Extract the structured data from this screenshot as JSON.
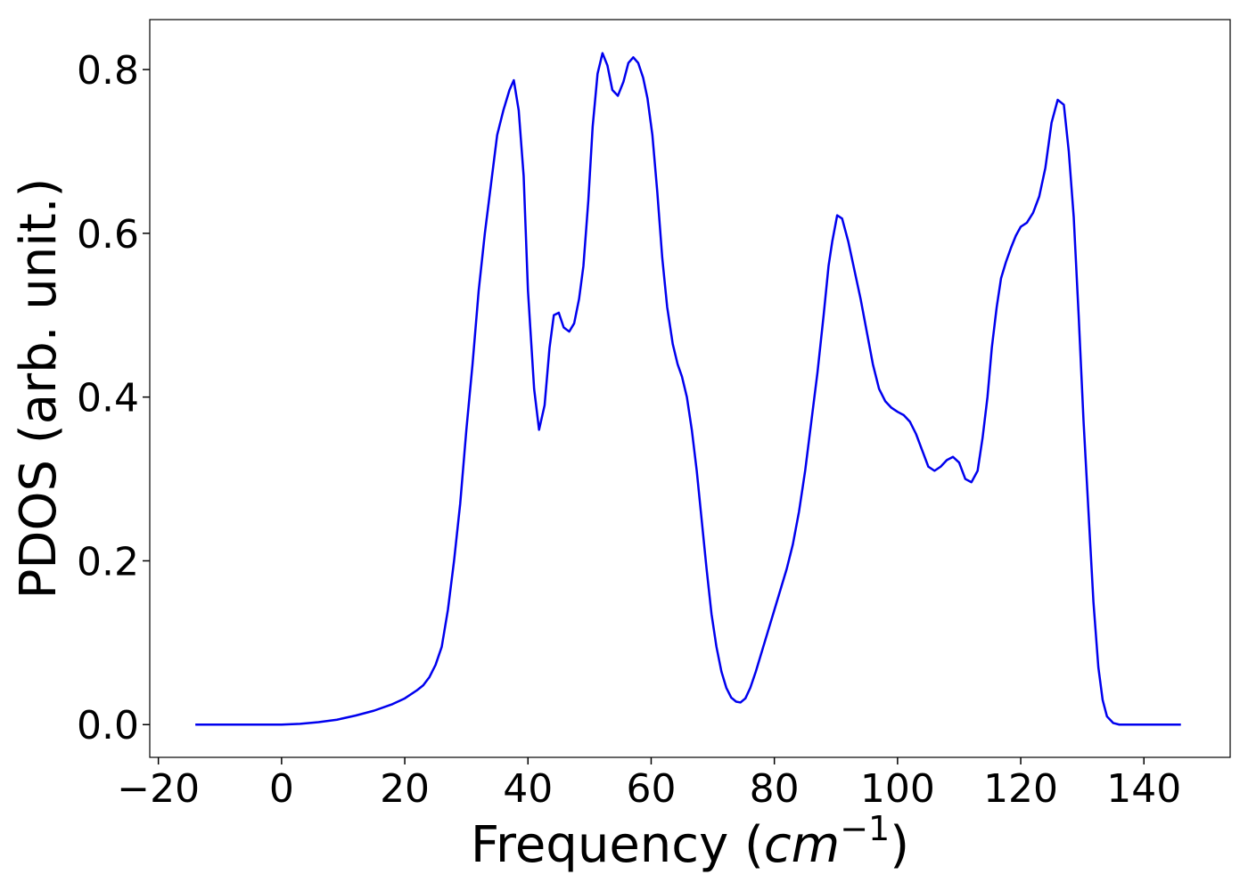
{
  "chart_data": {
    "type": "line",
    "xlabel": [
      "Frequency (",
      "cm",
      "−1",
      ")"
    ],
    "ylabel": "PDOS (arb. unit.)",
    "x": [
      -14,
      -10,
      -5,
      0,
      3,
      6,
      9,
      12,
      15,
      18,
      20,
      22,
      23,
      24,
      25,
      26,
      27,
      28,
      29,
      30,
      31,
      32,
      33,
      34,
      35,
      36,
      37,
      37.7,
      38.5,
      39.3,
      40,
      41,
      41.8,
      42.7,
      43.5,
      44.2,
      45,
      45.8,
      46.7,
      47.5,
      48.3,
      49,
      49.8,
      50.5,
      51.3,
      52.1,
      52.9,
      53.7,
      54.6,
      55.5,
      56.3,
      57.1,
      57.9,
      58.7,
      59.4,
      60.2,
      61,
      61.8,
      62.6,
      63.5,
      64.3,
      65,
      65.8,
      66.6,
      67.4,
      68.2,
      69,
      69.8,
      70.6,
      71.4,
      72.2,
      73,
      73.8,
      74.5,
      75.3,
      76.1,
      77,
      78,
      79,
      80,
      81,
      82,
      83,
      84,
      85,
      86,
      87,
      88,
      88.8,
      89.4,
      90.2,
      91,
      92,
      93,
      94,
      95,
      96,
      97,
      98,
      99,
      100,
      101,
      102,
      103,
      104,
      105,
      106,
      107,
      108,
      109,
      110,
      111,
      112,
      113,
      113.8,
      114.6,
      115.3,
      116.1,
      116.8,
      117.6,
      118.4,
      119.2,
      120,
      121,
      122,
      123,
      124,
      125,
      126,
      127,
      127.8,
      128.6,
      129.4,
      130.2,
      131,
      131.8,
      132.6,
      133.3,
      134,
      135,
      136,
      140,
      146
    ],
    "series": [
      {
        "name": "PDOS",
        "color": "#0000ee",
        "values": [
          0,
          0,
          0,
          0,
          0.001,
          0.003,
          0.006,
          0.011,
          0.017,
          0.025,
          0.032,
          0.042,
          0.048,
          0.058,
          0.073,
          0.095,
          0.14,
          0.2,
          0.27,
          0.36,
          0.44,
          0.53,
          0.6,
          0.66,
          0.72,
          0.75,
          0.775,
          0.787,
          0.75,
          0.67,
          0.53,
          0.41,
          0.36,
          0.39,
          0.46,
          0.5,
          0.503,
          0.485,
          0.48,
          0.49,
          0.52,
          0.56,
          0.64,
          0.73,
          0.795,
          0.82,
          0.805,
          0.775,
          0.768,
          0.785,
          0.808,
          0.815,
          0.808,
          0.79,
          0.765,
          0.72,
          0.65,
          0.57,
          0.51,
          0.465,
          0.44,
          0.425,
          0.4,
          0.36,
          0.31,
          0.25,
          0.19,
          0.135,
          0.095,
          0.065,
          0.045,
          0.033,
          0.028,
          0.027,
          0.032,
          0.045,
          0.065,
          0.09,
          0.115,
          0.14,
          0.165,
          0.19,
          0.22,
          0.26,
          0.31,
          0.37,
          0.43,
          0.5,
          0.56,
          0.59,
          0.622,
          0.618,
          0.59,
          0.555,
          0.52,
          0.48,
          0.44,
          0.41,
          0.395,
          0.387,
          0.382,
          0.378,
          0.37,
          0.355,
          0.335,
          0.315,
          0.31,
          0.315,
          0.323,
          0.327,
          0.32,
          0.3,
          0.296,
          0.31,
          0.35,
          0.4,
          0.46,
          0.51,
          0.545,
          0.565,
          0.582,
          0.597,
          0.608,
          0.613,
          0.625,
          0.645,
          0.68,
          0.735,
          0.763,
          0.757,
          0.7,
          0.62,
          0.5,
          0.37,
          0.26,
          0.15,
          0.07,
          0.03,
          0.01,
          0.002,
          0,
          0,
          0
        ]
      }
    ],
    "xlim": [
      -21.4,
      154
    ],
    "ylim": [
      -0.04,
      0.861
    ],
    "xticks": [
      {
        "value": -20,
        "label": "−20"
      },
      0,
      20,
      40,
      60,
      80,
      100,
      120,
      140
    ],
    "yticks": [
      {
        "value": 0,
        "label": "0.0"
      },
      0.2,
      0.4,
      0.6,
      0.8
    ],
    "grid": false
  }
}
